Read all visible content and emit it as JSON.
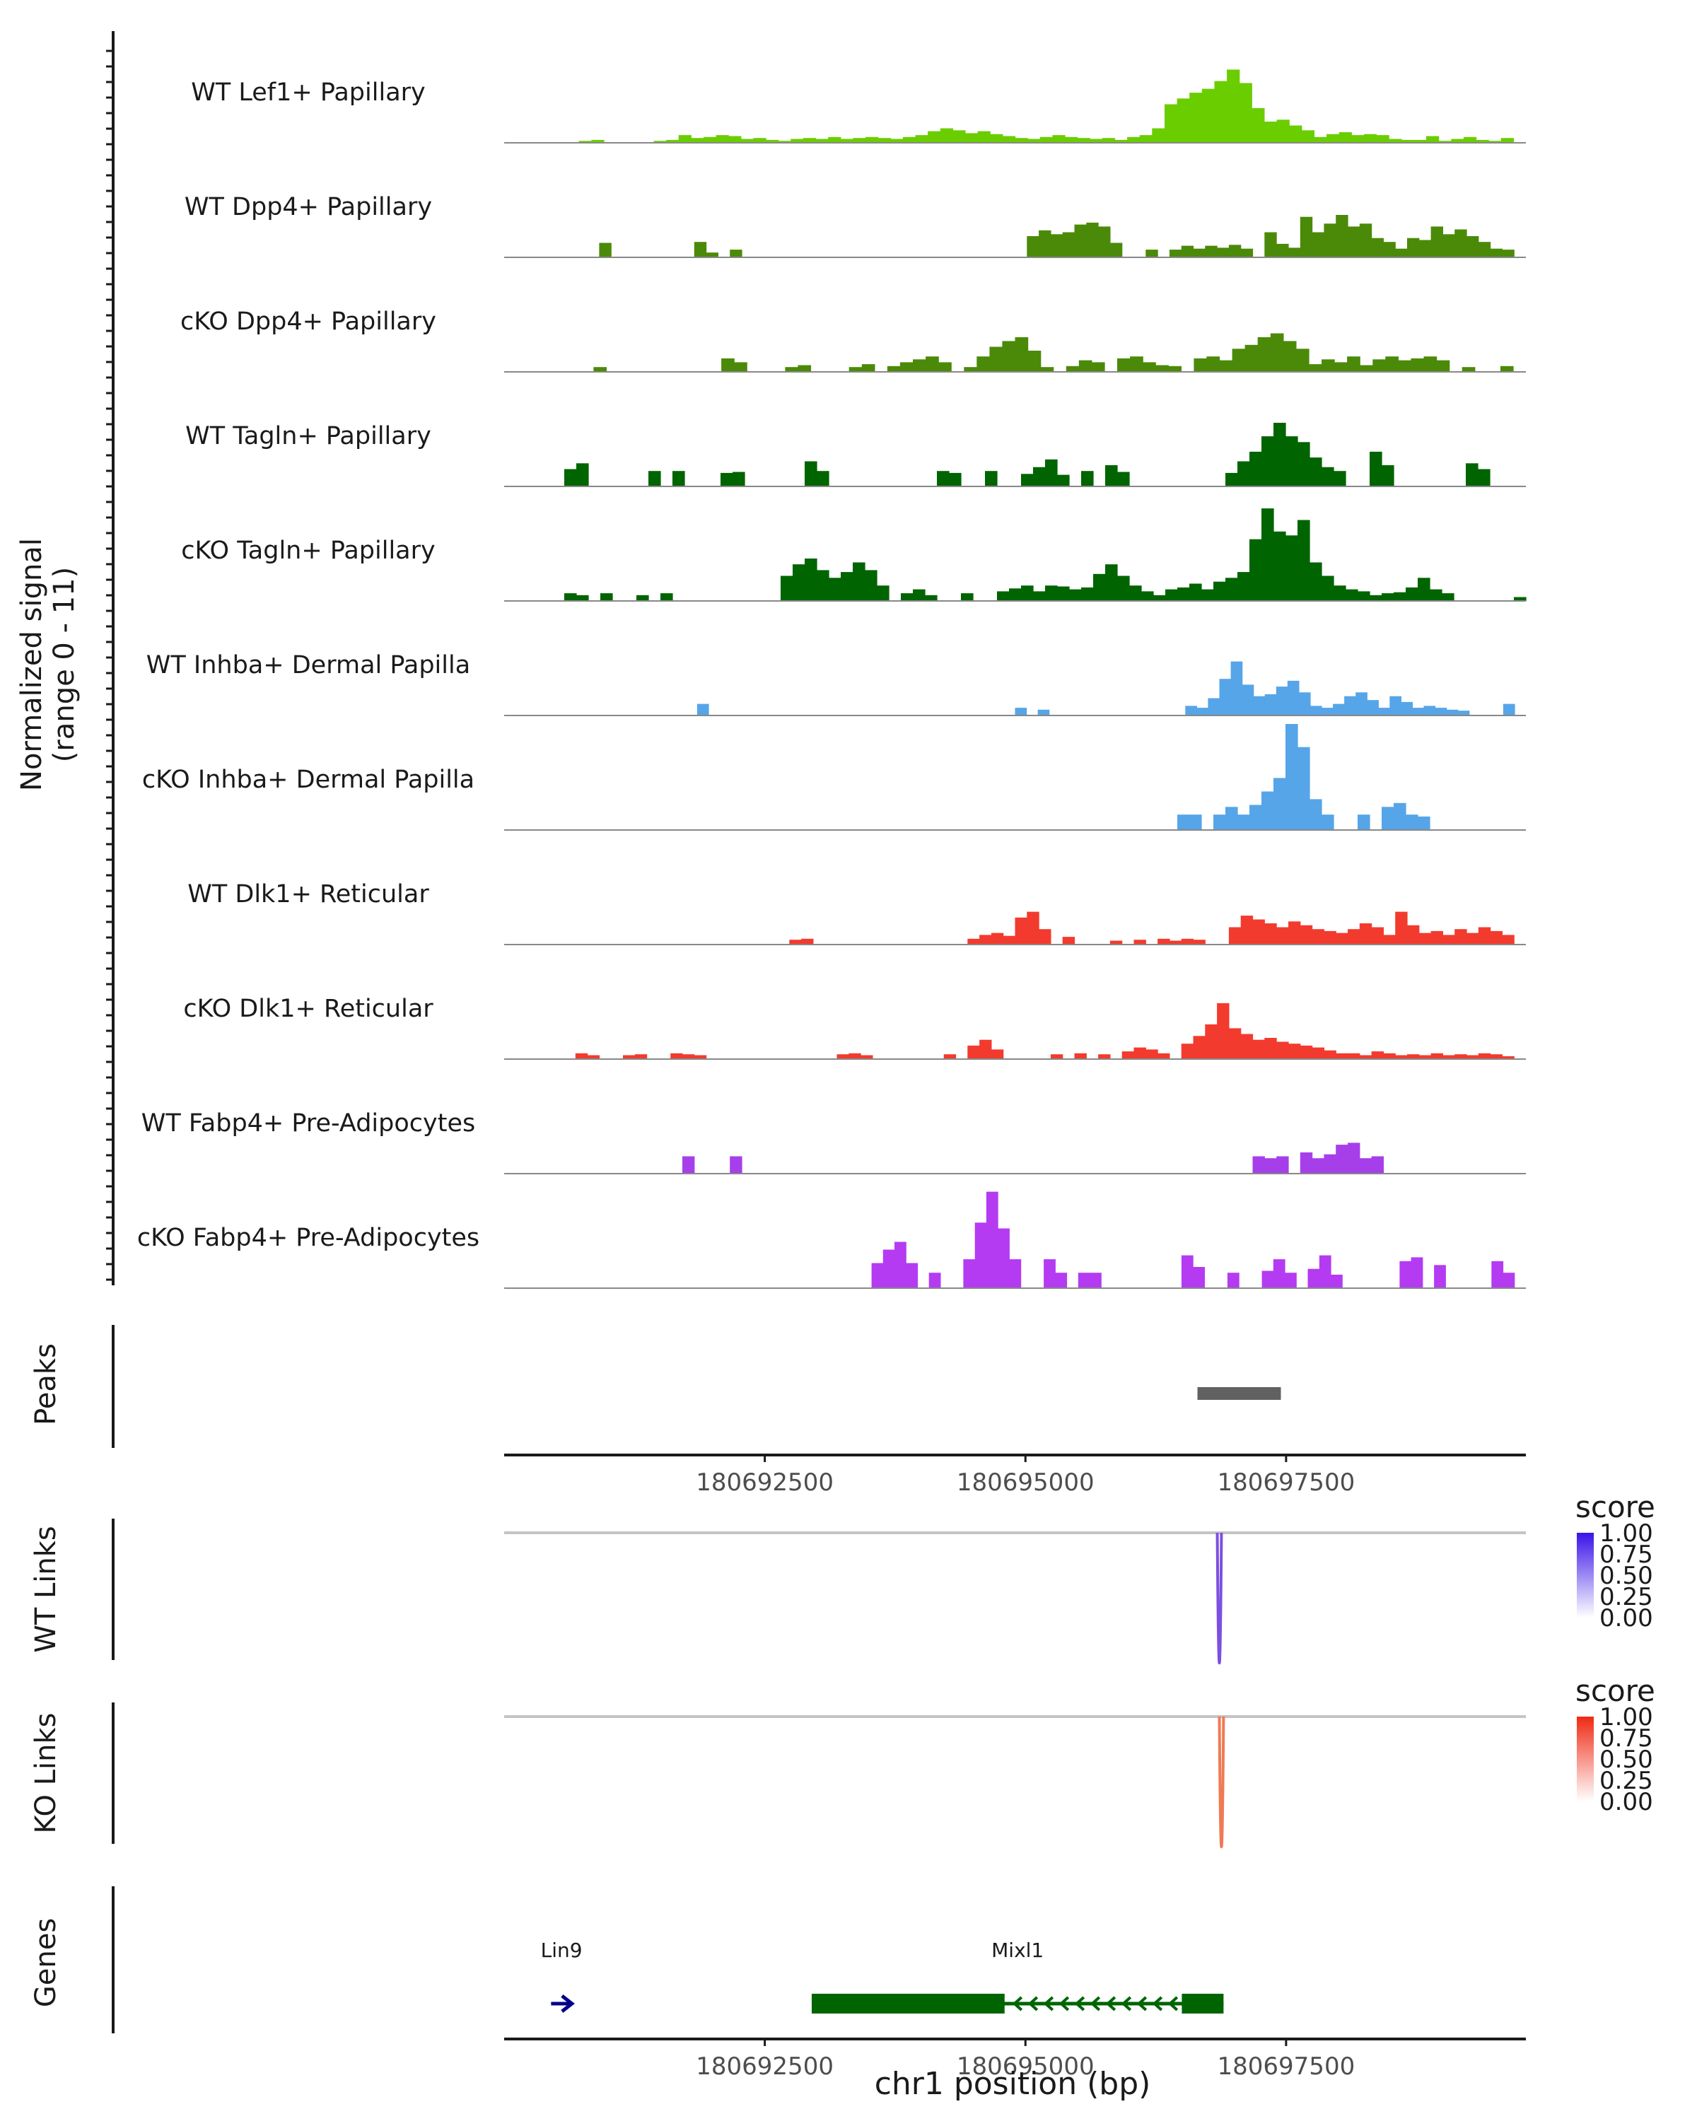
{
  "chart_data": {
    "type": "area",
    "title": "",
    "coverage": {
      "ylabel": "Normalized signal",
      "ylabel_range": "(range 0 - 11)",
      "ylim": [
        0,
        11
      ],
      "xlim": [
        180690000,
        180699800
      ],
      "tracks": [
        {
          "name": "WT Lef1+ Papillary",
          "color": "#6ACD00",
          "values": [
            0,
            0,
            0,
            0,
            0,
            0,
            0.2,
            0.3,
            0,
            0,
            0,
            0,
            0.2,
            0.3,
            0.8,
            0.5,
            0.6,
            0.8,
            0.7,
            0.4,
            0.5,
            0.3,
            0.2,
            0.4,
            0.5,
            0.4,
            0.6,
            0.4,
            0.5,
            0.6,
            0.5,
            0.4,
            0.6,
            0.8,
            1.2,
            1.5,
            1.3,
            1.0,
            1.2,
            0.9,
            0.7,
            0.5,
            0.4,
            0.6,
            0.8,
            0.6,
            0.5,
            0.4,
            0.5,
            0.3,
            0.6,
            0.8,
            1.5,
            4.0,
            4.6,
            5.2,
            5.6,
            6.4,
            7.6,
            6.2,
            3.6,
            2.2,
            2.4,
            1.8,
            1.3,
            0.6,
            0.9,
            1.1,
            0.8,
            0.9,
            0.8,
            0.4,
            0.3,
            0.3,
            0.7,
            0.2,
            0.4,
            0.6,
            0.3,
            0.2,
            0.5,
            0
          ]
        },
        {
          "name": "WT Dpp4+ Papillary",
          "color": "#4B8A08",
          "values": [
            0,
            0,
            0,
            0,
            0,
            0,
            0,
            0,
            1.5,
            0,
            0,
            0,
            0,
            0,
            0,
            0,
            1.6,
            0.5,
            0,
            0.8,
            0,
            0,
            0,
            0,
            0,
            0,
            0,
            0,
            0,
            0,
            0,
            0,
            0,
            0,
            0,
            0,
            0,
            0,
            0,
            0,
            0,
            0,
            0,
            0,
            2.2,
            2.8,
            2.4,
            2.6,
            3.4,
            3.6,
            3.2,
            1.5,
            0,
            0,
            0.8,
            0,
            0.8,
            1.2,
            0.9,
            1.2,
            1.0,
            1.3,
            0.9,
            0,
            2.6,
            1.4,
            1.0,
            4.2,
            2.6,
            3.5,
            4.4,
            3.2,
            3.5,
            2.0,
            1.6,
            0.9,
            2.0,
            1.8,
            3.2,
            2.4,
            2.9,
            2.2,
            1.6,
            0.9,
            0.8,
            0
          ]
        },
        {
          "name": "cKO Dpp4+ Papillary",
          "color": "#4B8A08",
          "values": [
            0,
            0,
            0,
            0,
            0,
            0,
            0,
            0.5,
            0,
            0,
            0,
            0,
            0,
            0,
            0,
            0,
            0,
            1.4,
            1.0,
            0,
            0,
            0,
            0.5,
            0.7,
            0,
            0,
            0,
            0.5,
            0.8,
            0,
            0.6,
            1.0,
            1.3,
            1.6,
            1.0,
            0,
            0.5,
            1.6,
            2.6,
            3.2,
            3.6,
            2.2,
            0.5,
            0,
            0.6,
            1.2,
            1.0,
            0,
            1.4,
            1.6,
            1.0,
            0.7,
            0.6,
            0,
            1.4,
            1.6,
            1.2,
            2.4,
            2.8,
            3.6,
            4.0,
            3.2,
            2.4,
            0.8,
            1.3,
            1.0,
            1.6,
            0.7,
            1.3,
            1.6,
            1.2,
            1.4,
            1.6,
            1.2,
            0,
            0.5,
            0,
            0,
            0.6,
            0
          ]
        },
        {
          "name": "WT Tagln+ Papillary",
          "color": "#006400",
          "values": [
            0,
            0,
            0,
            0,
            0,
            1.8,
            2.4,
            0,
            0,
            0,
            0,
            0,
            1.6,
            0,
            1.6,
            0,
            0,
            0,
            1.4,
            1.5,
            0,
            0,
            0,
            0,
            0,
            2.6,
            1.6,
            0,
            0,
            0,
            0,
            0,
            0,
            0,
            0,
            0,
            1.6,
            1.4,
            0,
            0,
            1.6,
            0,
            0,
            1.3,
            2.0,
            2.8,
            1.2,
            0,
            1.6,
            0,
            2.2,
            1.5,
            0,
            0,
            0,
            0,
            0,
            0,
            0,
            0,
            1.4,
            2.6,
            3.6,
            5.2,
            6.6,
            5.2,
            4.6,
            3.0,
            2.0,
            1.6,
            0,
            0,
            3.6,
            2.2,
            0,
            0,
            0,
            0,
            0,
            0,
            2.4,
            1.8,
            0,
            0,
            0
          ]
        },
        {
          "name": "cKO Tagln+ Papillary",
          "color": "#006400",
          "values": [
            0,
            0,
            0,
            0,
            0,
            0.8,
            0.6,
            0,
            0.8,
            0,
            0,
            0.6,
            0,
            0.8,
            0,
            0,
            0,
            0,
            0,
            0,
            0,
            0,
            0,
            2.6,
            3.8,
            4.4,
            3.2,
            2.4,
            3.0,
            4.0,
            3.2,
            1.6,
            0,
            0.8,
            1.2,
            0.6,
            0,
            0,
            0.8,
            0,
            0,
            1.0,
            1.3,
            1.6,
            1.0,
            1.6,
            1.5,
            1.2,
            1.4,
            2.8,
            3.8,
            2.6,
            1.6,
            1.0,
            0.6,
            1.2,
            1.4,
            1.8,
            1.2,
            2.0,
            2.4,
            3.0,
            6.4,
            9.6,
            7.2,
            6.8,
            8.4,
            4.0,
            2.6,
            1.6,
            1.2,
            1.0,
            0.6,
            0.8,
            0.9,
            1.4,
            2.4,
            1.2,
            0.8,
            0,
            0,
            0,
            0,
            0,
            0.4
          ]
        },
        {
          "name": "WT Inhba+ Dermal Papilla",
          "color": "#56A5E8",
          "values": [
            0,
            0,
            0,
            0,
            0,
            0,
            0,
            0,
            0,
            0,
            0,
            0,
            0,
            0,
            0,
            0,
            0,
            1.2,
            0,
            0,
            0,
            0,
            0,
            0,
            0,
            0,
            0,
            0,
            0,
            0,
            0,
            0,
            0,
            0,
            0,
            0,
            0,
            0,
            0,
            0,
            0,
            0,
            0,
            0,
            0,
            0.8,
            0,
            0.6,
            0,
            0,
            0,
            0,
            0,
            0,
            0,
            0,
            0,
            0,
            0,
            0,
            1.0,
            0.8,
            1.8,
            3.8,
            5.6,
            3.2,
            2.0,
            2.2,
            3.0,
            3.6,
            2.4,
            1.0,
            0.8,
            1.2,
            2.0,
            2.4,
            1.6,
            0.8,
            2.0,
            1.4,
            0.8,
            1.0,
            0.8,
            0.6,
            0.5,
            0,
            0,
            0,
            1.2,
            0
          ]
        },
        {
          "name": "cKO Inhba+ Dermal Papilla",
          "color": "#56A5E8",
          "values": [
            0,
            0,
            0,
            0,
            0,
            0,
            0,
            0,
            0,
            0,
            0,
            0,
            0,
            0,
            0,
            0,
            0,
            0,
            0,
            0,
            0,
            0,
            0,
            0,
            0,
            0,
            0,
            0,
            0,
            0,
            0,
            0,
            0,
            0,
            0,
            0,
            0,
            0,
            0,
            0,
            0,
            0,
            0,
            0,
            0,
            0,
            0,
            0,
            0,
            0,
            0,
            0,
            0,
            0,
            0,
            0,
            1.6,
            1.6,
            0,
            1.6,
            2.4,
            1.6,
            2.6,
            4.0,
            5.4,
            11.0,
            8.6,
            3.2,
            1.6,
            0,
            0,
            1.6,
            0,
            2.4,
            2.8,
            1.6,
            1.4,
            0,
            0,
            0,
            0,
            0,
            0,
            0,
            0
          ]
        },
        {
          "name": "WT Dlk1+ Reticular",
          "color": "#F23B2E",
          "values": [
            0,
            0,
            0,
            0,
            0,
            0,
            0,
            0,
            0,
            0,
            0,
            0,
            0,
            0,
            0,
            0,
            0,
            0,
            0,
            0,
            0,
            0,
            0,
            0,
            0.5,
            0.6,
            0,
            0,
            0,
            0,
            0,
            0,
            0,
            0,
            0,
            0,
            0,
            0,
            0,
            0.6,
            1.0,
            1.2,
            0.9,
            2.8,
            3.4,
            1.6,
            0,
            0.8,
            0,
            0,
            0,
            0.4,
            0,
            0.5,
            0,
            0.6,
            0.4,
            0.6,
            0.5,
            0,
            0,
            1.8,
            3.0,
            2.6,
            2.2,
            1.8,
            2.4,
            2.0,
            1.6,
            1.4,
            1.2,
            1.6,
            2.2,
            1.8,
            1.0,
            3.4,
            2.0,
            1.2,
            1.4,
            1.0,
            1.6,
            1.2,
            1.8,
            1.4,
            1.0,
            0
          ]
        },
        {
          "name": "cKO Dlk1+ Reticular",
          "color": "#F23B2E",
          "values": [
            0,
            0,
            0,
            0,
            0,
            0,
            0.6,
            0.4,
            0,
            0,
            0.4,
            0.5,
            0,
            0,
            0.6,
            0.5,
            0.4,
            0,
            0,
            0,
            0,
            0,
            0,
            0,
            0,
            0,
            0,
            0,
            0.5,
            0.6,
            0.4,
            0,
            0,
            0,
            0,
            0,
            0,
            0.5,
            0,
            1.4,
            2.0,
            1.0,
            0,
            0,
            0,
            0,
            0.5,
            0,
            0.6,
            0,
            0.5,
            0,
            0.8,
            1.2,
            1.0,
            0.6,
            0,
            1.6,
            2.4,
            3.6,
            5.8,
            3.2,
            2.6,
            2.0,
            2.2,
            1.8,
            1.6,
            1.4,
            1.2,
            0.9,
            0.6,
            0.6,
            0.4,
            0.8,
            0.6,
            0.4,
            0.5,
            0.4,
            0.6,
            0.4,
            0.5,
            0.4,
            0.6,
            0.5,
            0.3,
            0
          ]
        },
        {
          "name": "WT Fabp4+ Pre-Adipocytes",
          "color": "#A63FEA",
          "values": [
            0,
            0,
            0,
            0,
            0,
            0,
            0,
            0,
            0,
            0,
            0,
            0,
            0,
            0,
            0,
            1.8,
            0,
            0,
            0,
            1.8,
            0,
            0,
            0,
            0,
            0,
            0,
            0,
            0,
            0,
            0,
            0,
            0,
            0,
            0,
            0,
            0,
            0,
            0,
            0,
            0,
            0,
            0,
            0,
            0,
            0,
            0,
            0,
            0,
            0,
            0,
            0,
            0,
            0,
            0,
            0,
            0,
            0,
            0,
            0,
            0,
            0,
            0,
            0,
            1.8,
            1.6,
            1.8,
            0,
            2.2,
            1.6,
            2.0,
            3.0,
            3.2,
            1.6,
            1.8,
            0,
            0,
            0,
            0,
            0,
            0,
            0,
            0,
            0,
            0,
            0,
            0
          ]
        },
        {
          "name": "cKO Fabp4+ Pre-Adipocytes",
          "color": "#B43BF2",
          "values": [
            0,
            0,
            0,
            0,
            0,
            0,
            0,
            0,
            0,
            0,
            0,
            0,
            0,
            0,
            0,
            0,
            0,
            0,
            0,
            0,
            0,
            0,
            0,
            0,
            0,
            0,
            0,
            0,
            0,
            0,
            0,
            0,
            2.6,
            4.0,
            4.8,
            2.6,
            0,
            1.6,
            0,
            0,
            3.0,
            6.8,
            10.0,
            6.2,
            3.0,
            0,
            0,
            3.0,
            1.6,
            0,
            1.6,
            1.6,
            0,
            0,
            0,
            0,
            0,
            0,
            0,
            3.4,
            2.2,
            0,
            0,
            1.6,
            0,
            0,
            1.8,
            3.0,
            1.6,
            0,
            2.0,
            3.4,
            1.4,
            0,
            0,
            0,
            0,
            0,
            2.8,
            3.2,
            0,
            2.4,
            0,
            0,
            0,
            0,
            2.8,
            1.6,
            0
          ]
        }
      ]
    },
    "peaks": {
      "ylabel": "Peaks",
      "regions": [
        [
          180696650,
          180697450
        ]
      ]
    },
    "position_axis": {
      "ticks": [
        180692500,
        180695000,
        180697500
      ],
      "tick_labels": [
        "180692500",
        "180695000",
        "180697500"
      ]
    },
    "links": [
      {
        "ylabel": "WT Links",
        "legend_title": "score",
        "legend_ticks": [
          "1.00",
          "0.75",
          "0.50",
          "0.25",
          "0.00"
        ],
        "color_high": "#3A14E8",
        "color_low": "#FFFFFF",
        "link_color": "#7B50E0",
        "start": 180696840,
        "end": 180696880,
        "score": 0.6
      },
      {
        "ylabel": "KO Links",
        "legend_title": "score",
        "legend_ticks": [
          "1.00",
          "0.75",
          "0.50",
          "0.25",
          "0.00"
        ],
        "color_high": "#F02A14",
        "color_low": "#FFFFFF",
        "link_color": "#F07A55",
        "start": 180696860,
        "end": 180696900,
        "score": 0.6
      }
    ],
    "genes": {
      "ylabel": "Genes",
      "items": [
        {
          "name": "Lin9",
          "color": "#00008B",
          "start": 180690450,
          "end": 180690650,
          "strand": "+"
        },
        {
          "name": "Mixl1",
          "color": "#006400",
          "start": 180692950,
          "end": 180696900,
          "strand": "-",
          "thick": [
            [
              180692950,
              180694800
            ],
            [
              180696500,
              180696900
            ]
          ]
        }
      ]
    },
    "xlabel": "chr1 position (bp)"
  }
}
